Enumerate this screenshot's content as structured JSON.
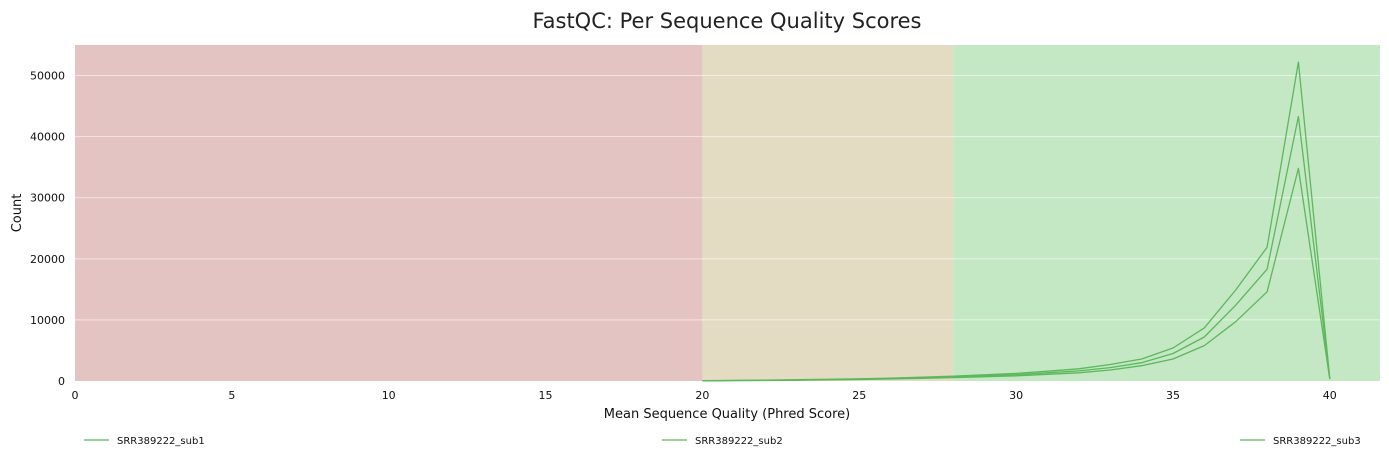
{
  "chart_data": {
    "type": "line",
    "title": "FastQC: Per Sequence Quality Scores",
    "xlabel": "Mean Sequence Quality (Phred Score)",
    "ylabel": "Count",
    "xlim": [
      0,
      41.6
    ],
    "ylim": [
      0,
      55000
    ],
    "x_ticks": [
      "0",
      "5",
      "10",
      "15",
      "20",
      "25",
      "30",
      "35",
      "40"
    ],
    "y_ticks": [
      "0",
      "10000",
      "20000",
      "30000",
      "40000",
      "50000"
    ],
    "grid": "horizontal",
    "legend_position": "bottom",
    "zones": [
      {
        "from": 0,
        "to": 20,
        "color": "#e4c3c3"
      },
      {
        "from": 20,
        "to": 28,
        "color": "#e4dbc3"
      },
      {
        "from": 28,
        "to": 41.6,
        "color": "#c4e7c4"
      }
    ],
    "line_color": "#5cb85c",
    "x": [
      20,
      21,
      22,
      23,
      24,
      25,
      26,
      27,
      28,
      29,
      30,
      31,
      32,
      33,
      34,
      35,
      36,
      37,
      38,
      39,
      40
    ],
    "series": [
      {
        "name": "SRR389222_sub1",
        "values": [
          30,
          60,
          90,
          130,
          180,
          240,
          320,
          420,
          550,
          700,
          850,
          1100,
          1350,
          1800,
          2500,
          3600,
          5800,
          9700,
          14600,
          34800,
          300
        ]
      },
      {
        "name": "SRR389222_sub2",
        "values": [
          40,
          80,
          120,
          170,
          230,
          300,
          400,
          520,
          680,
          860,
          1050,
          1350,
          1650,
          2200,
          3000,
          4500,
          7200,
          12400,
          18300,
          43300,
          350
        ]
      },
      {
        "name": "SRR389222_sub3",
        "values": [
          50,
          100,
          150,
          210,
          280,
          360,
          480,
          620,
          800,
          1020,
          1250,
          1600,
          2000,
          2700,
          3600,
          5400,
          8700,
          14900,
          21900,
          52200,
          400
        ]
      }
    ]
  }
}
